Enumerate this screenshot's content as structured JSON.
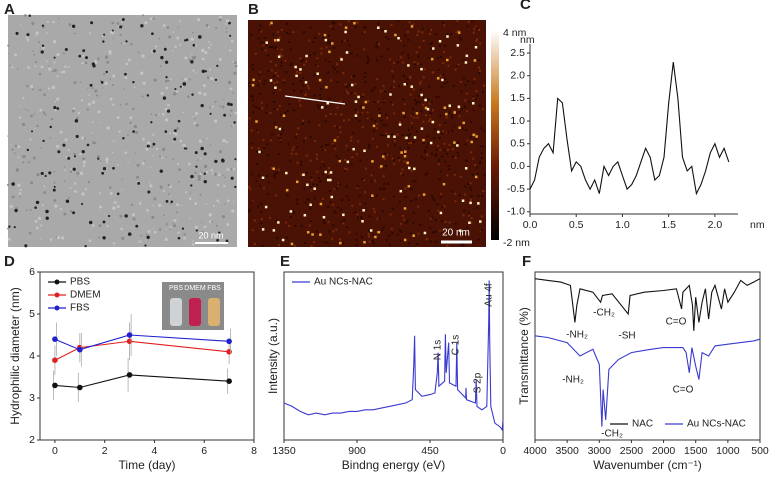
{
  "images": [
    {
      "panel": "A",
      "scale_bar": "20 nm"
    },
    {
      "panel": "B",
      "scale_bar": "20 nm",
      "colorbar_labels": [
        "4 nm",
        "-2 nm"
      ]
    }
  ],
  "chart_data": [
    {
      "type": "line",
      "panel": "C",
      "xlabel": "nm",
      "ylabel": "nm",
      "color": "#111111",
      "x": [
        0,
        0.05,
        0.1,
        0.15,
        0.2,
        0.25,
        0.3,
        0.35,
        0.4,
        0.45,
        0.5,
        0.55,
        0.6,
        0.65,
        0.7,
        0.75,
        0.8,
        0.85,
        0.9,
        0.95,
        1.0,
        1.05,
        1.1,
        1.15,
        1.2,
        1.25,
        1.3,
        1.35,
        1.4,
        1.45,
        1.5,
        1.55,
        1.6,
        1.65,
        1.7,
        1.75,
        1.8,
        1.85,
        1.9,
        1.95,
        2.0,
        2.05,
        2.1,
        2.15
      ],
      "values": [
        -0.5,
        -0.3,
        0.2,
        0.4,
        0.5,
        0.3,
        1.5,
        1.4,
        0.6,
        -0.1,
        0.1,
        0.0,
        -0.3,
        -0.5,
        -0.3,
        -0.6,
        0.0,
        -0.2,
        0.0,
        0.1,
        -0.2,
        -0.5,
        -0.4,
        -0.2,
        0.1,
        0.4,
        0.2,
        -0.3,
        -0.2,
        0.2,
        1.4,
        2.3,
        1.5,
        0.2,
        -0.1,
        0.0,
        -0.6,
        -0.4,
        -0.1,
        0.3,
        0.5,
        0.2,
        0.4,
        0.1
      ],
      "xlim": [
        0,
        2.25
      ],
      "xticks": [
        {
          "value": 0,
          "label": "0.0"
        },
        0.5,
        {
          "value": 1,
          "label": "1.0"
        },
        1.5,
        {
          "value": 2,
          "label": "2.0"
        }
      ],
      "ylim": [
        -1.05,
        2.7
      ],
      "yticks": [
        {
          "value": -1,
          "label": "-1.0"
        },
        -0.5,
        {
          "value": 0,
          "label": "0.0"
        },
        0.5,
        {
          "value": 1,
          "label": "1.0"
        },
        1.5,
        {
          "value": 2,
          "label": "2.0"
        },
        2.5
      ]
    },
    {
      "type": "line",
      "panel": "D",
      "xlabel": "Time (day)",
      "ylabel": "Hydrophilic diameter (nm)",
      "markers": true,
      "legend": "upper left",
      "inset_labels": [
        "PBS",
        "DMEM",
        "FBS"
      ],
      "x": [
        0,
        1,
        3,
        7
      ],
      "series": [
        {
          "name": "PBS",
          "color": "#111111",
          "values": [
            3.3,
            3.25,
            3.55,
            3.4
          ],
          "errors": [
            0.35,
            0.35,
            0.4,
            0.3
          ]
        },
        {
          "name": "DMEM",
          "color": "#e02020",
          "values": [
            3.9,
            4.2,
            4.35,
            4.1
          ],
          "errors": [
            0.35,
            0.35,
            0.45,
            0.3
          ]
        },
        {
          "name": "FBS",
          "color": "#2020d0",
          "values": [
            4.4,
            4.15,
            4.5,
            4.35
          ],
          "errors": [
            0.4,
            0.4,
            0.5,
            0.3
          ]
        }
      ],
      "xlim": [
        -0.6,
        8
      ],
      "xticks": [
        0,
        2,
        4,
        6,
        8
      ],
      "ylim": [
        2,
        6
      ],
      "yticks": [
        2,
        3,
        4,
        5,
        6
      ]
    },
    {
      "type": "line",
      "panel": "E",
      "xlabel": "Bindng energy (eV)",
      "ylabel": "Intensity (a.u.)",
      "legend": "upper left",
      "annotations": [
        "N 1s",
        "C 1s",
        "S 2p",
        "Au 4f"
      ],
      "x": [
        1350,
        1300,
        1250,
        1200,
        1150,
        1100,
        1050,
        1000,
        950,
        900,
        850,
        800,
        750,
        700,
        650,
        600,
        560,
        550,
        545,
        540,
        500,
        450,
        420,
        405,
        400,
        395,
        360,
        355,
        350,
        335,
        330,
        290,
        285,
        280,
        230,
        228,
        225,
        170,
        165,
        160,
        130,
        100,
        88,
        85,
        82,
        75,
        50,
        20,
        5,
        0
      ],
      "series": [
        {
          "name": "Au NCs-NAC",
          "color": "#3a3ad0",
          "values": [
            22,
            20,
            17,
            15,
            16,
            15,
            16,
            16,
            17,
            17,
            18,
            18,
            19,
            20,
            21,
            22,
            24,
            45,
            62,
            30,
            26,
            27,
            28,
            40,
            52,
            32,
            35,
            63,
            40,
            58,
            34,
            32,
            58,
            30,
            25,
            31,
            24,
            22,
            36,
            20,
            18,
            20,
            70,
            95,
            60,
            20,
            10,
            8,
            6,
            12
          ]
        }
      ],
      "xlim": [
        1350,
        0
      ],
      "xticks": [
        1350,
        900,
        450,
        0
      ],
      "ylim": [
        0,
        100
      ]
    },
    {
      "type": "line",
      "panel": "F",
      "xlabel": "Wavenumber (cm⁻¹)",
      "ylabel": "Transmittance (%)",
      "legend": "lower right",
      "annotations": [
        "-NH₂",
        "-CH₂",
        "-SH",
        "C=O",
        "-NH₂",
        "C=O",
        "-CH₂"
      ],
      "series": [
        {
          "name": "NAC",
          "color": "#111111",
          "x": [
            4000,
            3800,
            3600,
            3450,
            3380,
            3350,
            3300,
            3100,
            2980,
            2950,
            2800,
            2550,
            2520,
            2300,
            2000,
            1800,
            1720,
            1700,
            1600,
            1550,
            1530,
            1500,
            1450,
            1400,
            1350,
            1300,
            1250,
            1200,
            1100,
            1050,
            1000,
            900,
            800,
            700,
            600,
            500
          ],
          "values": [
            96,
            95,
            94,
            92,
            70,
            80,
            90,
            88,
            82,
            86,
            87,
            75,
            86,
            88,
            89,
            90,
            78,
            88,
            92,
            80,
            65,
            85,
            70,
            82,
            90,
            72,
            88,
            92,
            78,
            90,
            82,
            88,
            95,
            92,
            94,
            96
          ]
        },
        {
          "name": "Au NCs-NAC",
          "color": "#3a3ad0",
          "x": [
            4000,
            3800,
            3500,
            3300,
            3100,
            3000,
            2960,
            2940,
            2900,
            2850,
            2700,
            2500,
            2200,
            2000,
            1800,
            1700,
            1650,
            1600,
            1560,
            1500,
            1450,
            1400,
            1300,
            1200,
            1000,
            800,
            600,
            500
          ],
          "values": [
            62,
            61,
            58,
            50,
            54,
            45,
            8,
            30,
            12,
            42,
            48,
            52,
            54,
            55,
            55,
            55,
            52,
            40,
            55,
            44,
            36,
            52,
            50,
            56,
            57,
            58,
            59,
            60
          ]
        }
      ],
      "xlim": [
        4000,
        500
      ],
      "xticks": [
        4000,
        3500,
        3000,
        2500,
        2000,
        1500,
        1000,
        500
      ],
      "ylim": [
        0,
        100
      ]
    }
  ]
}
